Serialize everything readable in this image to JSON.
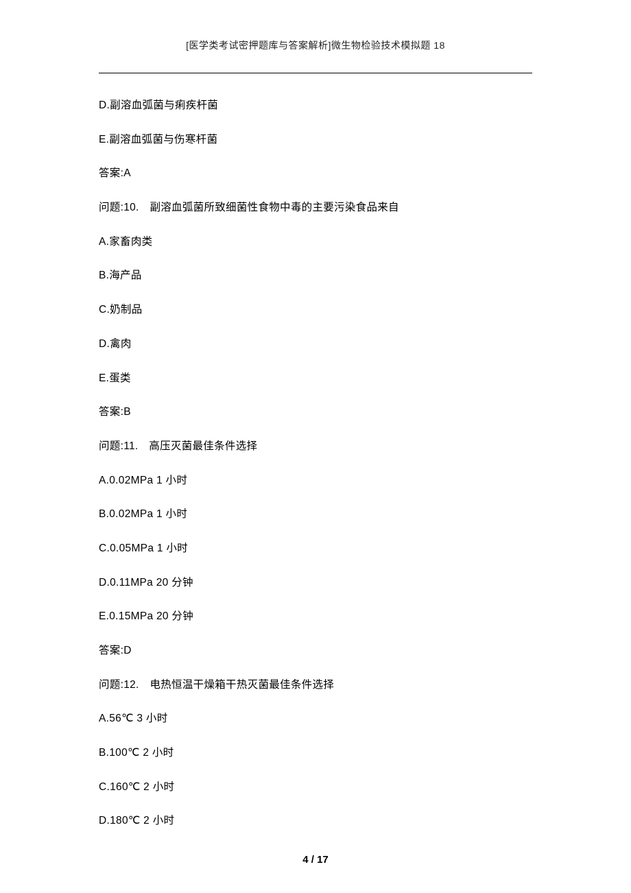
{
  "header": "[医学类考试密押题库与答案解析]微生物检验技术模拟题 18",
  "lines": [
    "D.副溶血弧菌与痢疾杆菌",
    "E.副溶血弧菌与伤寒杆菌",
    "答案:A",
    "问题:10.　副溶血弧菌所致细菌性食物中毒的主要污染食品来自",
    "A.家畜肉类",
    "B.海产品",
    "C.奶制品",
    "D.禽肉",
    "E.蛋类",
    "答案:B",
    "问题:11.　高压灭菌最佳条件选择",
    "A.0.02MPa 1 小时",
    "B.0.02MPa 1 小时",
    "C.0.05MPa 1 小时",
    "D.0.11MPa 20 分钟",
    "E.0.15MPa 20 分钟",
    "答案:D",
    "问题:12.　电热恒温干燥箱干热灭菌最佳条件选择",
    "A.56℃ 3 小时",
    "B.100℃ 2 小时",
    "C.160℃ 2 小时",
    "D.180℃ 2 小时"
  ],
  "footer": "4 / 17"
}
